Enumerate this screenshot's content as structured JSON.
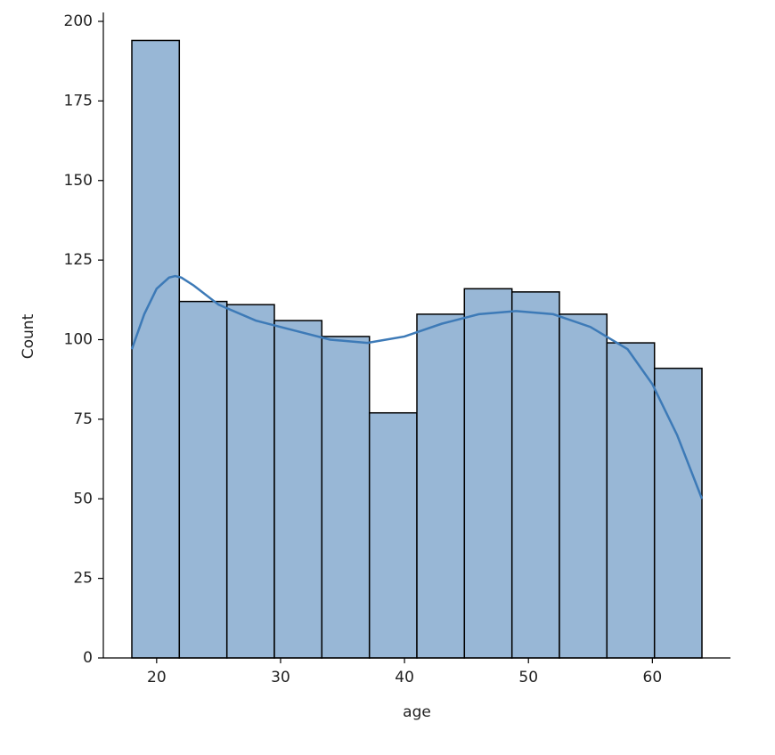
{
  "chart_data": {
    "type": "histogram",
    "xlabel": "age",
    "ylabel": "Count",
    "bins": [
      18,
      21.83,
      25.67,
      29.5,
      33.33,
      37.17,
      41,
      44.83,
      48.67,
      52.5,
      56.33,
      60.17,
      64
    ],
    "counts": [
      194,
      112,
      111,
      106,
      101,
      77,
      108,
      116,
      115,
      108,
      99,
      91
    ],
    "color": "#98b7d6",
    "edgecolor": "#000000",
    "kde": {
      "color": "#3d7ab7",
      "x": [
        18,
        19,
        20,
        21,
        21.5,
        22,
        23,
        25,
        28,
        31,
        34,
        37,
        40,
        43,
        46,
        49,
        52,
        55,
        58,
        60,
        62,
        64
      ],
      "values": [
        97,
        108,
        116,
        119.5,
        120,
        119.5,
        117,
        111,
        106,
        103,
        100,
        99,
        101,
        105,
        108,
        109,
        108,
        104,
        97,
        86,
        70,
        50
      ]
    },
    "xlim": [
      15.7,
      66.3
    ],
    "ylim": [
      0,
      202.8
    ],
    "xticks": [
      20,
      30,
      40,
      50,
      60
    ],
    "yticks": [
      0,
      25,
      50,
      75,
      100,
      125,
      150,
      175,
      200
    ]
  }
}
